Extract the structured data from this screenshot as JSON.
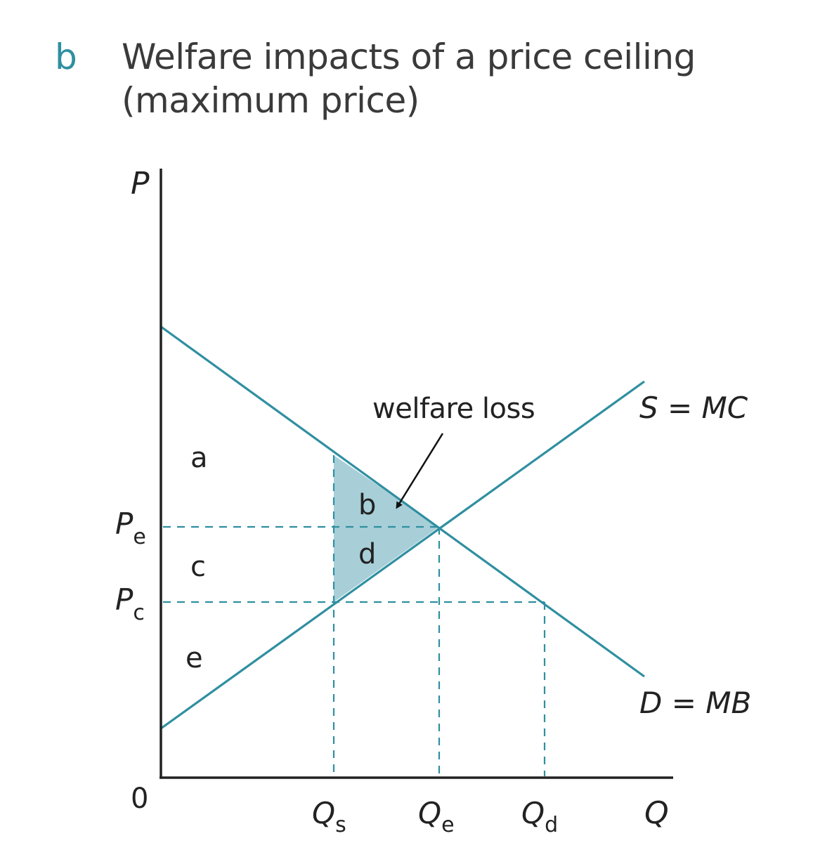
{
  "heading": {
    "letter": "b",
    "title_line1": "Welfare impacts of a price ceiling",
    "title_line2": "(maximum price)"
  },
  "colors": {
    "accent": "#2f8fa0",
    "fill": "#a8cfd8",
    "axis": "#222222",
    "text": "#3a3a3a"
  },
  "axes": {
    "y_label": "P",
    "x_label": "Q",
    "origin_label": "0"
  },
  "price_levels": [
    {
      "base": "P",
      "sub": "e"
    },
    {
      "base": "P",
      "sub": "c"
    }
  ],
  "quantity_levels": [
    {
      "base": "Q",
      "sub": "s"
    },
    {
      "base": "Q",
      "sub": "e"
    },
    {
      "base": "Q",
      "sub": "d"
    }
  ],
  "curves": {
    "supply_label": "S = MC",
    "demand_label": "D = MB"
  },
  "areas": {
    "a": "a",
    "b": "b",
    "c": "c",
    "d": "d",
    "e": "e"
  },
  "annotation": {
    "text": "welfare loss"
  }
}
